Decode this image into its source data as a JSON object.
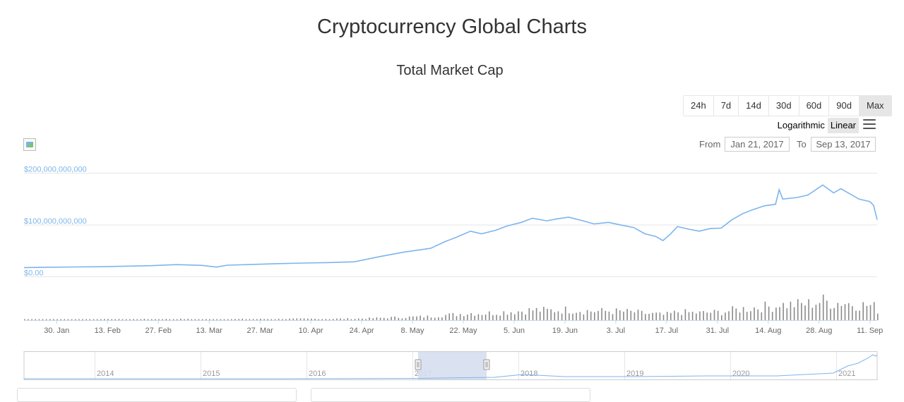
{
  "page_title": "Cryptocurrency Global Charts",
  "range_buttons": [
    {
      "label": "24h",
      "active": false
    },
    {
      "label": "7d",
      "active": false
    },
    {
      "label": "14d",
      "active": false
    },
    {
      "label": "30d",
      "active": false
    },
    {
      "label": "60d",
      "active": false
    },
    {
      "label": "90d",
      "active": false
    },
    {
      "label": "Max",
      "active": true
    }
  ],
  "scale": {
    "logarithmic_label": "Logarithmic",
    "linear_label": "Linear",
    "active": "Linear"
  },
  "date_range": {
    "from_label": "From",
    "from_value": "Jan 21, 2017",
    "to_label": "To",
    "to_value": "Sep 13, 2017"
  },
  "colors": {
    "line": "#7cb5ec",
    "volume": "#8a8a8a",
    "axis_label": "#7cb5ec",
    "navigator_mask": "#d6deef"
  },
  "chart_data": {
    "type": "line",
    "title": "Total Market Cap",
    "y_ticks": [
      "$200,000,000,000",
      "$100,000,000,000",
      "$0.00"
    ],
    "ylim": [
      0,
      200000000000
    ],
    "x_ticks": [
      "30. Jan",
      "13. Feb",
      "27. Feb",
      "13. Mar",
      "27. Mar",
      "10. Apr",
      "24. Apr",
      "8. May",
      "22. May",
      "5. Jun",
      "19. Jun",
      "3. Jul",
      "17. Jul",
      "31. Jul",
      "14. Aug",
      "28. Aug",
      "11. Sep"
    ],
    "x_range": [
      "2017-01-21",
      "2017-09-13"
    ],
    "series": [
      {
        "x": [
          "2017-01-21",
          "2017-01-28",
          "2017-02-04",
          "2017-02-11",
          "2017-02-18",
          "2017-02-25",
          "2017-03-04",
          "2017-03-11",
          "2017-03-15",
          "2017-03-18",
          "2017-03-25",
          "2017-04-01",
          "2017-04-08",
          "2017-04-15",
          "2017-04-22",
          "2017-04-29",
          "2017-05-06",
          "2017-05-10",
          "2017-05-13",
          "2017-05-17",
          "2017-05-20",
          "2017-05-24",
          "2017-05-27",
          "2017-05-31",
          "2017-06-03",
          "2017-06-07",
          "2017-06-10",
          "2017-06-14",
          "2017-06-17",
          "2017-06-20",
          "2017-06-24",
          "2017-06-27",
          "2017-07-01",
          "2017-07-05",
          "2017-07-08",
          "2017-07-11",
          "2017-07-14",
          "2017-07-16",
          "2017-07-18",
          "2017-07-20",
          "2017-07-23",
          "2017-07-26",
          "2017-07-29",
          "2017-08-01",
          "2017-08-04",
          "2017-08-07",
          "2017-08-10",
          "2017-08-13",
          "2017-08-16",
          "2017-08-17",
          "2017-08-18",
          "2017-08-22",
          "2017-08-25",
          "2017-08-29",
          "2017-09-01",
          "2017-09-03",
          "2017-09-05",
          "2017-09-08",
          "2017-09-11",
          "2017-09-12",
          "2017-09-13"
        ],
        "values": [
          17800000000,
          18500000000,
          19000000000,
          19500000000,
          20500000000,
          21500000000,
          23500000000,
          22000000000,
          18800000000,
          22500000000,
          24000000000,
          25500000000,
          26500000000,
          27500000000,
          29000000000,
          39000000000,
          48000000000,
          52000000000,
          55000000000,
          68000000000,
          76000000000,
          88000000000,
          83000000000,
          90000000000,
          98000000000,
          105000000000,
          113000000000,
          108000000000,
          112000000000,
          115000000000,
          108000000000,
          102000000000,
          105000000000,
          99000000000,
          95000000000,
          83000000000,
          78000000000,
          70000000000,
          82000000000,
          97000000000,
          92000000000,
          88000000000,
          93000000000,
          94000000000,
          110000000000,
          122000000000,
          130000000000,
          137000000000,
          140000000000,
          168000000000,
          150000000000,
          153000000000,
          158000000000,
          177000000000,
          162000000000,
          170000000000,
          162000000000,
          150000000000,
          145000000000,
          138000000000,
          110000000000
        ]
      }
    ],
    "navigator_ticks": [
      "2014",
      "2015",
      "2016",
      "2017",
      "2018",
      "2019",
      "2020",
      "2021"
    ]
  }
}
